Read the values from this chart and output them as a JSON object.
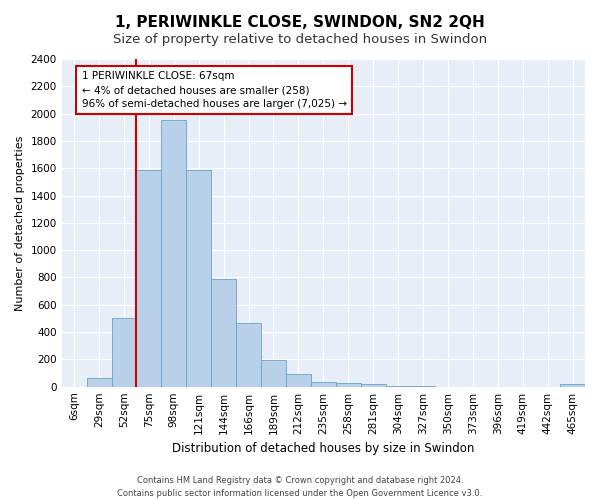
{
  "title": "1, PERIWINKLE CLOSE, SWINDON, SN2 2QH",
  "subtitle": "Size of property relative to detached houses in Swindon",
  "xlabel": "Distribution of detached houses by size in Swindon",
  "ylabel": "Number of detached properties",
  "categories": [
    "6sqm",
    "29sqm",
    "52sqm",
    "75sqm",
    "98sqm",
    "121sqm",
    "144sqm",
    "166sqm",
    "189sqm",
    "212sqm",
    "235sqm",
    "258sqm",
    "281sqm",
    "304sqm",
    "327sqm",
    "350sqm",
    "373sqm",
    "396sqm",
    "419sqm",
    "442sqm",
    "465sqm"
  ],
  "values": [
    0,
    60,
    500,
    1590,
    1950,
    1590,
    790,
    470,
    195,
    90,
    35,
    30,
    20,
    5,
    2,
    1,
    1,
    0,
    0,
    0,
    20
  ],
  "bar_color": "#b8d0e8",
  "bar_edge_color": "#6aa3cc",
  "vline_x_index": 2,
  "vline_color": "#cc0000",
  "annotation_text": "1 PERIWINKLE CLOSE: 67sqm\n← 4% of detached houses are smaller (258)\n96% of semi-detached houses are larger (7,025) →",
  "annotation_box_color": "#ffffff",
  "annotation_box_edge": "#cc0000",
  "ylim": [
    0,
    2400
  ],
  "yticks": [
    0,
    200,
    400,
    600,
    800,
    1000,
    1200,
    1400,
    1600,
    1800,
    2000,
    2200,
    2400
  ],
  "background_color": "#e8eef8",
  "footer_line1": "Contains HM Land Registry data © Crown copyright and database right 2024.",
  "footer_line2": "Contains public sector information licensed under the Open Government Licence v3.0.",
  "title_fontsize": 11,
  "subtitle_fontsize": 9.5,
  "xlabel_fontsize": 8.5,
  "ylabel_fontsize": 8,
  "tick_fontsize": 7.5,
  "annotation_fontsize": 7.5,
  "footer_fontsize": 6
}
